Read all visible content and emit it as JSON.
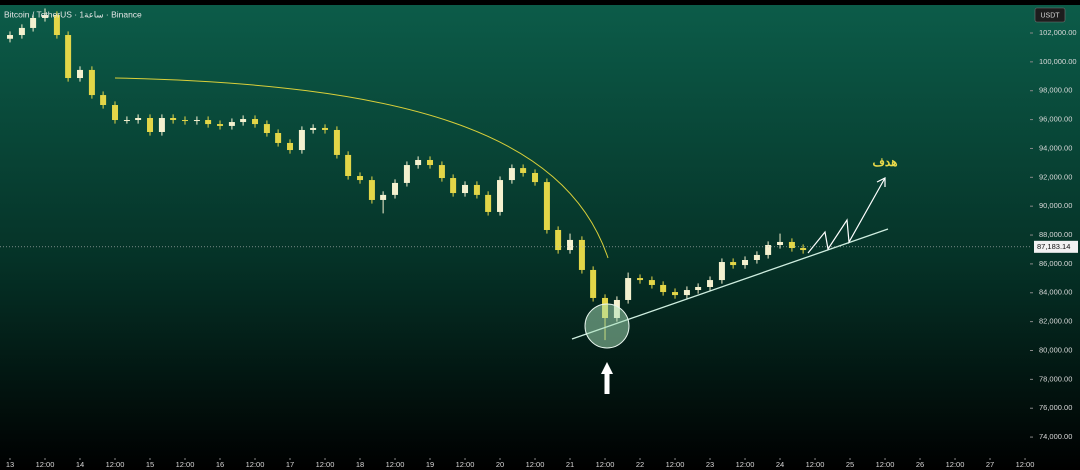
{
  "chart_data": {
    "type": "candlestick",
    "title": "Bitcoin / TetherUS · 1ساعة · Binance",
    "currency": "USDT",
    "annotation": "هدف",
    "up_color": "#f4f1cf",
    "down_color": "#e3d648",
    "x": [
      13,
      13.17,
      13.33,
      13.5,
      13.67,
      13.83,
      14,
      14.17,
      14.33,
      14.5,
      14.67,
      14.83,
      15,
      15.17,
      15.33,
      15.5,
      15.67,
      15.83,
      16,
      16.17,
      16.33,
      16.5,
      16.67,
      16.83,
      17,
      17.17,
      17.33,
      17.5,
      17.67,
      17.83,
      18,
      18.17,
      18.33,
      18.5,
      18.67,
      18.83,
      19,
      19.17,
      19.33,
      19.5,
      19.67,
      19.83,
      20,
      20.17,
      20.33,
      20.5,
      20.67,
      20.83,
      21,
      21.17,
      21.33,
      21.5,
      21.67,
      21.83,
      22,
      22.17,
      22.33,
      22.5,
      22.67,
      22.83,
      23,
      23.17,
      23.33,
      23.5,
      23.67,
      23.83,
      24,
      24.17,
      24.33
    ],
    "open": [
      101600,
      101860,
      102350,
      103040,
      103250,
      101860,
      98880,
      99440,
      97700,
      97010,
      95970,
      95970,
      96110,
      95140,
      96110,
      95970,
      95900,
      95970,
      95690,
      95560,
      95830,
      96040,
      95690,
      95070,
      94380,
      93890,
      95280,
      95420,
      95280,
      93550,
      92090,
      91810,
      90430,
      90780,
      91610,
      92850,
      93200,
      92850,
      91950,
      90910,
      91470,
      90780,
      89600,
      91810,
      92640,
      92300,
      91670,
      88350,
      86960,
      87660,
      85580,
      83640,
      82250,
      83500,
      85020,
      84880,
      84540,
      84050,
      83840,
      84190,
      84400,
      84880,
      86130,
      85920,
      86270,
      86620,
      87310,
      87520,
      87100
    ],
    "high": [
      102110,
      102600,
      103290,
      103700,
      103500,
      102110,
      99690,
      99690,
      97950,
      97260,
      96220,
      96360,
      96360,
      96360,
      96360,
      96220,
      96220,
      96220,
      95940,
      96080,
      96290,
      96290,
      95940,
      95320,
      94630,
      95530,
      95670,
      95670,
      95530,
      93800,
      92340,
      92060,
      91030,
      91860,
      93100,
      93450,
      93450,
      93100,
      92200,
      91720,
      91720,
      91030,
      92060,
      92890,
      92890,
      92550,
      91920,
      88600,
      88100,
      87910,
      85830,
      83890,
      83750,
      85400,
      85270,
      85130,
      84790,
      84300,
      84440,
      84650,
      85130,
      86380,
      86380,
      86520,
      86870,
      87560,
      88100,
      87770,
      87350
    ],
    "low": [
      101350,
      101610,
      102100,
      102790,
      101610,
      98630,
      98630,
      97450,
      96760,
      95720,
      95720,
      95720,
      94890,
      94890,
      95720,
      95650,
      95650,
      95440,
      95310,
      95310,
      95580,
      95440,
      94820,
      94130,
      93640,
      93640,
      95030,
      95030,
      93300,
      91840,
      91560,
      90180,
      89500,
      90530,
      91360,
      92600,
      92600,
      91700,
      90660,
      90660,
      90530,
      89350,
      89350,
      91560,
      92050,
      91420,
      88100,
      86710,
      86710,
      85330,
      83390,
      80720,
      82000,
      83250,
      84630,
      84290,
      83800,
      83590,
      83590,
      83940,
      84150,
      84630,
      85670,
      85670,
      86020,
      86370,
      87060,
      86850,
      86710
    ],
    "close": [
      101860,
      102350,
      103040,
      103250,
      101860,
      98880,
      99440,
      97700,
      97010,
      95970,
      95970,
      96110,
      95140,
      96110,
      95970,
      95900,
      95970,
      95690,
      95560,
      95830,
      96040,
      95690,
      95070,
      94380,
      93890,
      95280,
      95420,
      95280,
      93550,
      92090,
      91810,
      90430,
      90780,
      91610,
      92850,
      93200,
      92850,
      91950,
      90910,
      91470,
      90780,
      89600,
      91810,
      92640,
      92300,
      91670,
      88350,
      86960,
      87660,
      85580,
      83640,
      82250,
      83500,
      85020,
      84880,
      84540,
      84050,
      83840,
      84190,
      84400,
      84880,
      86130,
      85920,
      86270,
      86620,
      87310,
      87520,
      87100,
      86960
    ],
    "last_price": {
      "value": 87183.14,
      "label": "87,183.14"
    },
    "xlim": [
      12.857,
      27.571
    ],
    "ylim": [
      72550,
      103940
    ],
    "xticks": [
      13,
      {
        "value": 13.5,
        "label": "12:00"
      },
      14,
      {
        "value": 14.5,
        "label": "12:00"
      },
      15,
      {
        "value": 15.5,
        "label": "12:00"
      },
      16,
      {
        "value": 16.5,
        "label": "12:00"
      },
      17,
      {
        "value": 17.5,
        "label": "12:00"
      },
      18,
      {
        "value": 18.5,
        "label": "12:00"
      },
      19,
      {
        "value": 19.5,
        "label": "12:00"
      },
      20,
      {
        "value": 20.5,
        "label": "12:00"
      },
      21,
      {
        "value": 21.5,
        "label": "12:00"
      },
      22,
      {
        "value": 22.5,
        "label": "12:00"
      },
      23,
      {
        "value": 23.5,
        "label": "12:00"
      },
      24,
      {
        "value": 24.5,
        "label": "12:00"
      },
      25,
      {
        "value": 25.5,
        "label": "12:00"
      },
      26,
      {
        "value": 26.5,
        "label": "12:00"
      },
      27,
      {
        "value": 27.5,
        "label": "12:00"
      }
    ],
    "yticks": [
      {
        "value": 74000,
        "label": "74,000.00"
      },
      {
        "value": 76000,
        "label": "76,000.00"
      },
      {
        "value": 78000,
        "label": "78,000.00"
      },
      {
        "value": 80000,
        "label": "80,000.00"
      },
      {
        "value": 82000,
        "label": "82,000.00"
      },
      {
        "value": 84000,
        "label": "84,000.00"
      },
      {
        "value": 86000,
        "label": "86,000.00"
      },
      {
        "value": 88000,
        "label": "88,000.00"
      },
      {
        "value": 90000,
        "label": "90,000.00"
      },
      {
        "value": 92000,
        "label": "92,000.00"
      },
      {
        "value": 94000,
        "label": "94,000.00"
      },
      {
        "value": 96000,
        "label": "96,000.00"
      },
      {
        "value": 98000,
        "label": "98,000.00"
      },
      {
        "value": 100000,
        "label": "100,000.00"
      },
      {
        "value": 102000,
        "label": "102,000.00"
      }
    ]
  }
}
